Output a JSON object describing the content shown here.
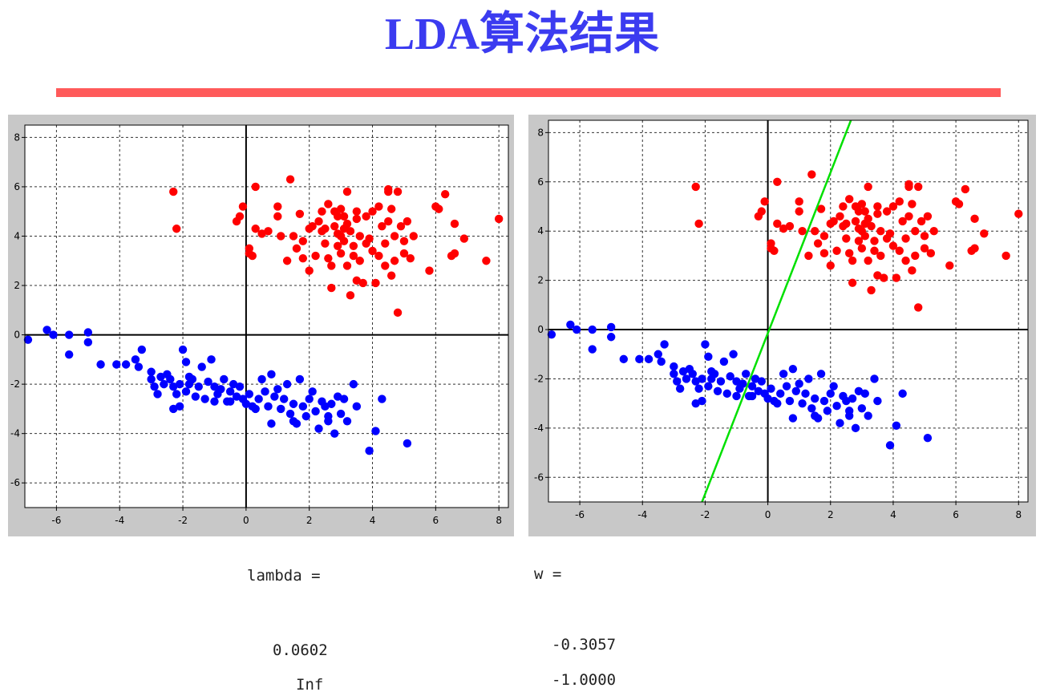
{
  "title": "LDA算法结果",
  "colors": {
    "title": "#3b3bf0",
    "divider": "#ff5a5a",
    "class1": "#ff0000",
    "class2": "#0000ff",
    "projection_line": "#00e000"
  },
  "output": {
    "lambda_label": "lambda =",
    "lambda_values": [
      "0.0602",
      "Inf"
    ],
    "w_label": "w =",
    "w_values": [
      "-0.3057",
      "-1.0000"
    ]
  },
  "chart_data": [
    {
      "type": "scatter",
      "xlim": [
        -7,
        8.3
      ],
      "ylim": [
        -7,
        8.5
      ],
      "xticks": [
        -6,
        -4,
        -2,
        0,
        2,
        4,
        6,
        8
      ],
      "yticks": [
        -6,
        -4,
        -2,
        0,
        2,
        4,
        6,
        8
      ],
      "grid": true,
      "series": [
        {
          "color": "#ff0000",
          "points": [
            [
              -2.3,
              5.8
            ],
            [
              -2.2,
              4.3
            ],
            [
              -0.3,
              4.6
            ],
            [
              -0.2,
              4.8
            ],
            [
              -0.1,
              5.2
            ],
            [
              0.1,
              3.3
            ],
            [
              0.1,
              3.5
            ],
            [
              0.2,
              3.2
            ],
            [
              0.3,
              4.3
            ],
            [
              0.3,
              6.0
            ],
            [
              0.5,
              4.1
            ],
            [
              0.7,
              4.2
            ],
            [
              1.0,
              4.8
            ],
            [
              1.0,
              5.2
            ],
            [
              1.3,
              3.0
            ],
            [
              1.4,
              6.3
            ],
            [
              1.5,
              4.0
            ],
            [
              1.6,
              3.5
            ],
            [
              1.7,
              4.9
            ],
            [
              1.8,
              3.8
            ],
            [
              2.0,
              4.3
            ],
            [
              2.0,
              2.6
            ],
            [
              2.1,
              4.4
            ],
            [
              2.2,
              3.2
            ],
            [
              2.3,
              4.6
            ],
            [
              2.4,
              4.2
            ],
            [
              2.5,
              3.7
            ],
            [
              2.5,
              4.3
            ],
            [
              2.6,
              5.3
            ],
            [
              2.6,
              3.1
            ],
            [
              2.7,
              2.8
            ],
            [
              2.7,
              1.9
            ],
            [
              2.8,
              4.4
            ],
            [
              2.8,
              5.0
            ],
            [
              2.9,
              4.1
            ],
            [
              2.9,
              3.6
            ],
            [
              3.0,
              4.0
            ],
            [
              3.0,
              3.3
            ],
            [
              3.0,
              5.1
            ],
            [
              3.1,
              4.8
            ],
            [
              3.1,
              3.8
            ],
            [
              3.2,
              4.5
            ],
            [
              3.2,
              2.8
            ],
            [
              3.2,
              5.8
            ],
            [
              3.3,
              1.6
            ],
            [
              3.3,
              4.2
            ],
            [
              3.4,
              3.6
            ],
            [
              3.4,
              3.2
            ],
            [
              3.5,
              5.0
            ],
            [
              3.5,
              4.7
            ],
            [
              3.5,
              2.2
            ],
            [
              3.6,
              4.0
            ],
            [
              3.6,
              3.0
            ],
            [
              3.7,
              2.1
            ],
            [
              3.8,
              4.8
            ],
            [
              3.9,
              3.9
            ],
            [
              4.0,
              5.0
            ],
            [
              4.0,
              3.4
            ],
            [
              4.1,
              2.1
            ],
            [
              4.2,
              5.2
            ],
            [
              4.2,
              3.2
            ],
            [
              4.3,
              4.4
            ],
            [
              4.4,
              3.7
            ],
            [
              4.4,
              2.8
            ],
            [
              4.5,
              5.8
            ],
            [
              4.5,
              5.9
            ],
            [
              4.5,
              4.6
            ],
            [
              4.6,
              5.1
            ],
            [
              4.7,
              3.0
            ],
            [
              4.7,
              4.0
            ],
            [
              4.8,
              5.8
            ],
            [
              4.9,
              4.4
            ],
            [
              5.0,
              3.8
            ],
            [
              5.0,
              3.3
            ],
            [
              5.1,
              4.6
            ],
            [
              5.2,
              3.1
            ],
            [
              5.3,
              4.0
            ],
            [
              4.8,
              0.9
            ],
            [
              4.6,
              2.4
            ],
            [
              5.8,
              2.6
            ],
            [
              6.0,
              5.2
            ],
            [
              6.1,
              5.1
            ],
            [
              6.3,
              5.7
            ],
            [
              6.5,
              3.2
            ],
            [
              6.6,
              3.3
            ],
            [
              6.6,
              4.5
            ],
            [
              6.9,
              3.9
            ],
            [
              7.6,
              3.0
            ],
            [
              8.0,
              4.7
            ],
            [
              1.8,
              3.1
            ],
            [
              2.9,
              4.8
            ],
            [
              3.8,
              3.7
            ],
            [
              1.1,
              4.0
            ],
            [
              2.4,
              5.0
            ],
            [
              3.1,
              4.3
            ]
          ]
        },
        {
          "color": "#0000ff",
          "points": [
            [
              -6.9,
              -0.2
            ],
            [
              -6.3,
              0.2
            ],
            [
              -6.1,
              0.0
            ],
            [
              -5.6,
              -0.8
            ],
            [
              -5.6,
              0.0
            ],
            [
              -5.0,
              0.1
            ],
            [
              -5.0,
              -0.3
            ],
            [
              -4.6,
              -1.2
            ],
            [
              -4.1,
              -1.2
            ],
            [
              -3.8,
              -1.2
            ],
            [
              -3.5,
              -1.0
            ],
            [
              -3.4,
              -1.3
            ],
            [
              -3.3,
              -0.6
            ],
            [
              -3.0,
              -1.5
            ],
            [
              -3.0,
              -1.8
            ],
            [
              -2.9,
              -2.1
            ],
            [
              -2.8,
              -2.4
            ],
            [
              -2.7,
              -1.7
            ],
            [
              -2.6,
              -2.0
            ],
            [
              -2.5,
              -1.6
            ],
            [
              -2.4,
              -1.8
            ],
            [
              -2.3,
              -2.1
            ],
            [
              -2.2,
              -2.4
            ],
            [
              -2.1,
              -2.0
            ],
            [
              -2.0,
              -0.6
            ],
            [
              -1.9,
              -1.1
            ],
            [
              -1.9,
              -2.3
            ],
            [
              -1.8,
              -2.0
            ],
            [
              -1.7,
              -1.8
            ],
            [
              -1.6,
              -2.5
            ],
            [
              -1.5,
              -2.1
            ],
            [
              -1.4,
              -1.3
            ],
            [
              -1.3,
              -2.6
            ],
            [
              -1.2,
              -1.9
            ],
            [
              -1.1,
              -1.0
            ],
            [
              -1.0,
              -2.1
            ],
            [
              -0.9,
              -2.4
            ],
            [
              -0.8,
              -2.2
            ],
            [
              -0.7,
              -1.8
            ],
            [
              -0.6,
              -2.7
            ],
            [
              -0.5,
              -2.3
            ],
            [
              -0.4,
              -2.0
            ],
            [
              -0.3,
              -2.5
            ],
            [
              -0.2,
              -2.1
            ],
            [
              -0.1,
              -2.6
            ],
            [
              0.0,
              -2.8
            ],
            [
              0.1,
              -2.4
            ],
            [
              0.2,
              -2.9
            ],
            [
              0.4,
              -2.6
            ],
            [
              0.5,
              -1.8
            ],
            [
              0.6,
              -2.3
            ],
            [
              0.7,
              -2.9
            ],
            [
              0.8,
              -1.6
            ],
            [
              0.9,
              -2.5
            ],
            [
              1.0,
              -2.2
            ],
            [
              1.1,
              -3.0
            ],
            [
              1.2,
              -2.6
            ],
            [
              1.3,
              -2.0
            ],
            [
              1.4,
              -3.2
            ],
            [
              1.5,
              -2.8
            ],
            [
              1.6,
              -3.6
            ],
            [
              1.7,
              -1.8
            ],
            [
              1.8,
              -2.9
            ],
            [
              1.9,
              -3.3
            ],
            [
              2.0,
              -2.6
            ],
            [
              2.1,
              -2.3
            ],
            [
              2.2,
              -3.1
            ],
            [
              2.3,
              -3.8
            ],
            [
              2.4,
              -2.7
            ],
            [
              2.5,
              -2.9
            ],
            [
              2.6,
              -3.5
            ],
            [
              2.7,
              -2.8
            ],
            [
              2.8,
              -4.0
            ],
            [
              2.9,
              -2.5
            ],
            [
              3.0,
              -3.2
            ],
            [
              3.1,
              -2.6
            ],
            [
              3.2,
              -3.5
            ],
            [
              3.4,
              -2.0
            ],
            [
              3.5,
              -2.9
            ],
            [
              3.9,
              -4.7
            ],
            [
              4.1,
              -3.9
            ],
            [
              4.3,
              -2.6
            ],
            [
              5.1,
              -4.4
            ],
            [
              -2.3,
              -3.0
            ],
            [
              -2.1,
              -2.9
            ],
            [
              -1.0,
              -2.7
            ],
            [
              0.8,
              -3.6
            ],
            [
              1.5,
              -3.5
            ],
            [
              2.6,
              -3.3
            ],
            [
              -0.5,
              -2.7
            ],
            [
              -1.8,
              -1.7
            ],
            [
              0.3,
              -3.0
            ]
          ]
        }
      ]
    },
    {
      "type": "scatter",
      "xlim": [
        -7,
        8.3
      ],
      "ylim": [
        -7,
        8.5
      ],
      "xticks": [
        -6,
        -4,
        -2,
        0,
        2,
        4,
        6,
        8
      ],
      "yticks": [
        -6,
        -4,
        -2,
        0,
        2,
        4,
        6,
        8
      ],
      "grid": true,
      "line": {
        "color": "#00e000",
        "from": [
          -2.1,
          -7
        ],
        "to": [
          2.65,
          8.5
        ]
      },
      "series": "same as chart 1"
    }
  ]
}
